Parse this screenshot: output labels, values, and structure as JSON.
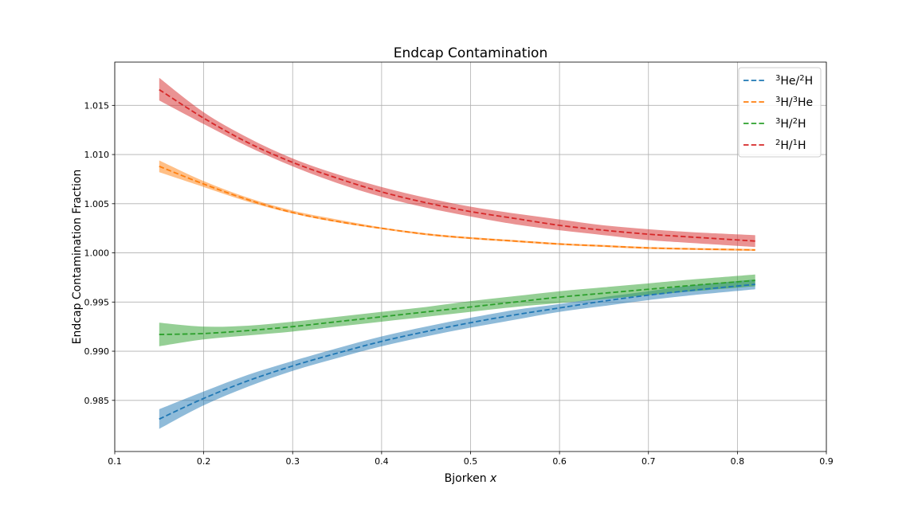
{
  "chart_data": {
    "type": "line",
    "title": "Endcap Contamination",
    "xlabel": "Bjorken",
    "xlabel_var": "x",
    "ylabel": "Endcap Contamination Fraction",
    "xlim": [
      0.1,
      0.9
    ],
    "ylim": [
      0.9798,
      1.0194
    ],
    "xticks": [
      0.1,
      0.2,
      0.3,
      0.4,
      0.5,
      0.6,
      0.7,
      0.8,
      0.9
    ],
    "xtick_labels": [
      "0.1",
      "0.2",
      "0.3",
      "0.4",
      "0.5",
      "0.6",
      "0.7",
      "0.8",
      "0.9"
    ],
    "yticks": [
      0.985,
      0.99,
      0.995,
      1.0,
      1.005,
      1.01,
      1.015
    ],
    "ytick_labels": [
      "0.985",
      "0.990",
      "0.995",
      "1.000",
      "1.005",
      "1.010",
      "1.015"
    ],
    "grid": true,
    "legend_position": "top-right",
    "x": [
      0.15,
      0.2,
      0.25,
      0.3,
      0.35,
      0.4,
      0.45,
      0.5,
      0.55,
      0.6,
      0.65,
      0.7,
      0.75,
      0.82
    ],
    "series": [
      {
        "legend": [
          {
            "t": "3",
            "sup": true
          },
          {
            "t": "He/"
          },
          {
            "t": "2",
            "sup": true
          },
          {
            "t": "H"
          }
        ],
        "color": "#1f77b4",
        "values": [
          0.9831,
          0.9852,
          0.987,
          0.9885,
          0.9898,
          0.991,
          0.992,
          0.9929,
          0.9937,
          0.9944,
          0.9951,
          0.9957,
          0.9962,
          0.9968
        ],
        "lower": [
          0.9821,
          0.9845,
          0.9864,
          0.988,
          0.9893,
          0.9905,
          0.9915,
          0.9924,
          0.9932,
          0.994,
          0.9946,
          0.9952,
          0.9957,
          0.9963
        ],
        "upper": [
          0.9841,
          0.9859,
          0.9876,
          0.989,
          0.9903,
          0.9915,
          0.9925,
          0.9934,
          0.9942,
          0.9948,
          0.9955,
          0.9961,
          0.9967,
          0.9973
        ]
      },
      {
        "legend": [
          {
            "t": "3",
            "sup": true
          },
          {
            "t": "H/"
          },
          {
            "t": "3",
            "sup": true
          },
          {
            "t": "He"
          }
        ],
        "color": "#ff7f0e",
        "values": [
          1.0088,
          1.007,
          1.0054,
          1.0041,
          1.0032,
          1.0025,
          1.0019,
          1.0015,
          1.0012,
          1.0009,
          1.0007,
          1.0005,
          1.0004,
          1.0003
        ],
        "lower": [
          1.0082,
          1.0067,
          1.0052,
          1.004,
          1.0031,
          1.0024,
          1.0018,
          1.0014,
          1.0011,
          1.0008,
          1.0006,
          1.0004,
          1.0003,
          1.0002
        ],
        "upper": [
          1.0094,
          1.0073,
          1.0056,
          1.0043,
          1.0034,
          1.0026,
          1.002,
          1.0016,
          1.0013,
          1.001,
          1.0008,
          1.0006,
          1.0005,
          1.0004
        ]
      },
      {
        "legend": [
          {
            "t": "3",
            "sup": true
          },
          {
            "t": "H/"
          },
          {
            "t": "2",
            "sup": true
          },
          {
            "t": "H"
          }
        ],
        "color": "#2ca02c",
        "values": [
          0.9917,
          0.9918,
          0.9921,
          0.9925,
          0.993,
          0.9935,
          0.994,
          0.9945,
          0.995,
          0.9955,
          0.9959,
          0.9963,
          0.9967,
          0.9972
        ],
        "lower": [
          0.9905,
          0.9912,
          0.9916,
          0.992,
          0.9925,
          0.993,
          0.9935,
          0.994,
          0.9945,
          0.9949,
          0.9953,
          0.9957,
          0.9961,
          0.9966
        ],
        "upper": [
          0.9929,
          0.9925,
          0.9926,
          0.993,
          0.9935,
          0.994,
          0.9945,
          0.9951,
          0.9956,
          0.9961,
          0.9965,
          0.9969,
          0.9973,
          0.9978
        ]
      },
      {
        "legend": [
          {
            "t": "2",
            "sup": true
          },
          {
            "t": "H/"
          },
          {
            "t": "1",
            "sup": true
          },
          {
            "t": "H"
          }
        ],
        "color": "#d62728",
        "values": [
          1.0166,
          1.0137,
          1.0112,
          1.0092,
          1.0076,
          1.0062,
          1.0051,
          1.0042,
          1.0035,
          1.0028,
          1.0023,
          1.0019,
          1.0016,
          1.0012
        ],
        "lower": [
          1.0155,
          1.0131,
          1.0108,
          1.0088,
          1.0071,
          1.0057,
          1.0046,
          1.0037,
          1.0029,
          1.0023,
          1.0018,
          1.0013,
          1.001,
          1.0006
        ],
        "upper": [
          1.0178,
          1.0143,
          1.0117,
          1.0096,
          1.008,
          1.0067,
          1.0056,
          1.0047,
          1.004,
          1.0034,
          1.0028,
          1.0024,
          1.0021,
          1.0018
        ]
      }
    ]
  }
}
